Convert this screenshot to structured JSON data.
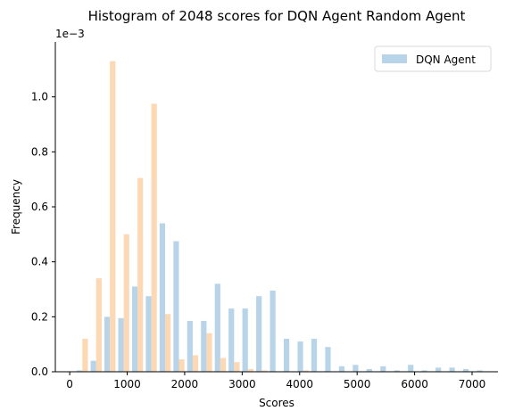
{
  "chart_data": {
    "type": "bar",
    "title": "Histogram of 2048 scores for DQN Agent Random Agent",
    "xlabel": "Scores",
    "ylabel": "Frequency",
    "y_offset_label": "1e−3",
    "xlim": [
      -250,
      7450
    ],
    "ylim": [
      0,
      1.2
    ],
    "bin_width": 240,
    "bin_starts": [
      100,
      340,
      580,
      820,
      1060,
      1300,
      1540,
      1780,
      2020,
      2260,
      2500,
      2740,
      2980,
      3220,
      3460,
      3700,
      3940,
      4180,
      4420,
      4660,
      4900,
      5140,
      5380,
      5620,
      5860,
      6100,
      6340,
      6580,
      6820,
      7060
    ],
    "x_ticks": [
      0,
      1000,
      2000,
      3000,
      4000,
      5000,
      6000,
      7000
    ],
    "x_tick_labels": [
      "0",
      "1000",
      "2000",
      "3000",
      "4000",
      "5000",
      "6000",
      "7000"
    ],
    "y_ticks": [
      0.0,
      0.2,
      0.4,
      0.6,
      0.8,
      1.0
    ],
    "y_tick_labels": [
      "0.0",
      "0.2",
      "0.4",
      "0.6",
      "0.8",
      "1.0"
    ],
    "legend_position": "upper right",
    "series": [
      {
        "name": "DQN Agent",
        "color": "#b7d4e8",
        "values": [
          0.005,
          0.04,
          0.2,
          0.195,
          0.31,
          0.275,
          0.54,
          0.475,
          0.185,
          0.185,
          0.32,
          0.23,
          0.23,
          0.275,
          0.295,
          0.12,
          0.11,
          0.12,
          0.09,
          0.02,
          0.025,
          0.01,
          0.02,
          0.005,
          0.025,
          0.005,
          0.015,
          0.015,
          0.01,
          0.005
        ]
      },
      {
        "color": "#fcd8b4",
        "values": [
          0.12,
          0.34,
          1.13,
          0.5,
          0.705,
          0.975,
          0.21,
          0.045,
          0.06,
          0.14,
          0.05,
          0.035,
          0.01,
          0.005,
          0.0,
          0.0,
          0.005,
          0.0,
          0.0,
          0.0,
          0.0,
          0.0,
          0.0,
          0.0,
          0.0,
          0.0,
          0.0,
          0.0,
          0.0,
          0.0
        ]
      }
    ]
  }
}
